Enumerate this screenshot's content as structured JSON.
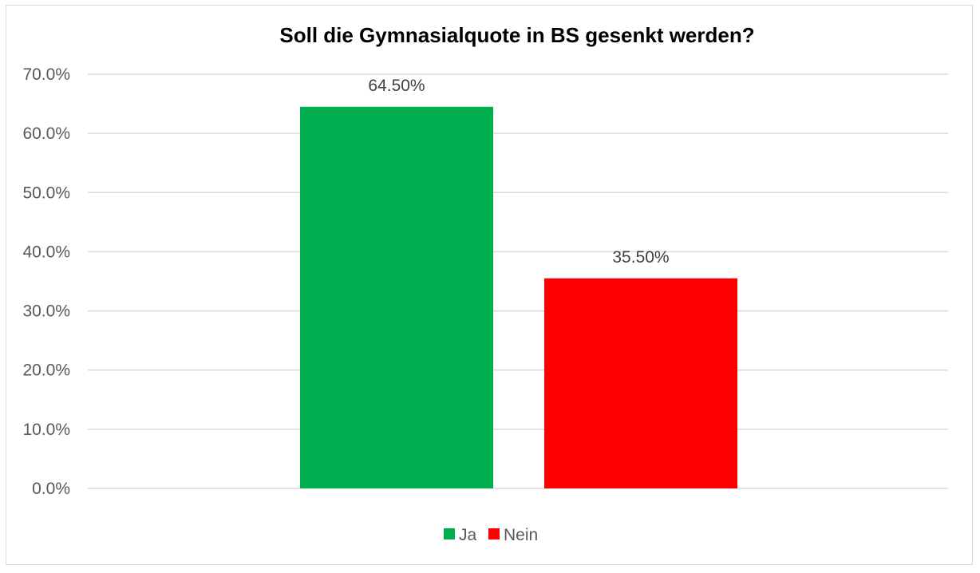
{
  "chart_data": {
    "type": "bar",
    "title": "Soll die Gymnasialquote in BS gesenkt werden?",
    "xlabel": "",
    "ylabel": "",
    "ylim": [
      0,
      70
    ],
    "yticks": [
      "0.0%",
      "10.0%",
      "20.0%",
      "30.0%",
      "40.0%",
      "50.0%",
      "60.0%",
      "70.0%"
    ],
    "grid": true,
    "legend_position": "bottom",
    "series": [
      {
        "name": "Ja",
        "value": 64.5,
        "label": "64.50%",
        "color": "#00b050"
      },
      {
        "name": "Nein",
        "value": 35.5,
        "label": "35.50%",
        "color": "#ff0000"
      }
    ]
  }
}
